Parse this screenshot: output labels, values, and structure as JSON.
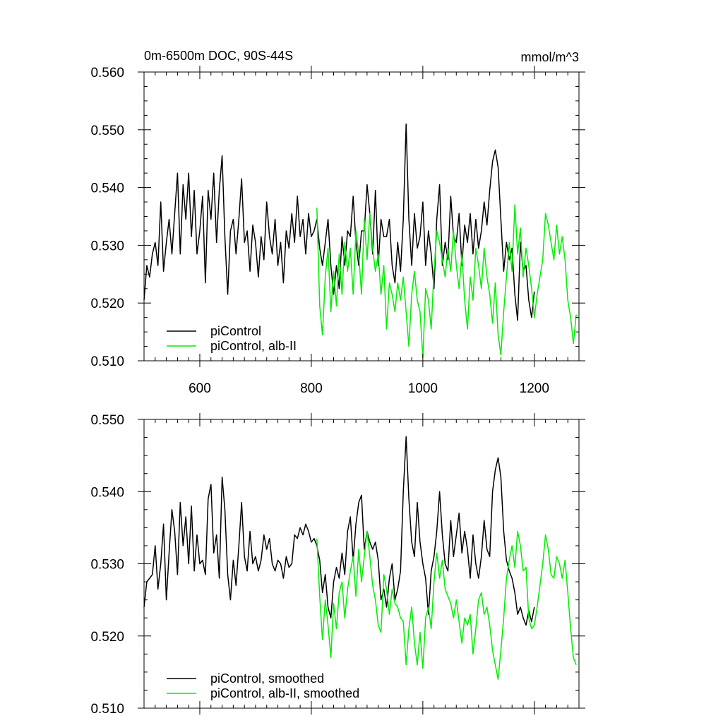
{
  "figure": {
    "title_left": "0m-6500m DOC, 90S-44S",
    "title_right": "mmol/m^3"
  },
  "colors": {
    "control": "#000000",
    "albII": "#00ee00",
    "axis": "#000000"
  },
  "chart_data": [
    {
      "type": "line",
      "xlim": [
        500,
        1280
      ],
      "ylim": [
        0.51,
        0.56
      ],
      "xticks": [
        600,
        800,
        1000,
        1200
      ],
      "xtick_labels": [
        "600",
        "800",
        "1000",
        "1200"
      ],
      "yticks": [
        0.51,
        0.52,
        0.53,
        0.54,
        0.55,
        0.56
      ],
      "ytick_labels": [
        "0.510",
        "0.520",
        "0.530",
        "0.540",
        "0.550",
        "0.560"
      ],
      "legend": [
        "piControl",
        "piControl, alb-II"
      ],
      "series": [
        {
          "name": "piControl",
          "x": [
            500,
            505,
            510,
            515,
            520,
            525,
            530,
            535,
            540,
            545,
            550,
            555,
            560,
            565,
            570,
            575,
            580,
            585,
            590,
            595,
            600,
            605,
            610,
            615,
            620,
            625,
            630,
            635,
            640,
            645,
            650,
            655,
            660,
            665,
            670,
            675,
            680,
            685,
            690,
            695,
            700,
            705,
            710,
            715,
            720,
            725,
            730,
            735,
            740,
            745,
            750,
            755,
            760,
            765,
            770,
            775,
            780,
            785,
            790,
            795,
            800,
            805,
            810,
            815,
            820,
            825,
            830,
            835,
            840,
            845,
            850,
            855,
            860,
            865,
            870,
            875,
            880,
            885,
            890,
            895,
            900,
            905,
            910,
            915,
            920,
            925,
            930,
            935,
            940,
            945,
            950,
            955,
            960,
            965,
            970,
            975,
            980,
            985,
            990,
            995,
            1000,
            1005,
            1010,
            1015,
            1020,
            1025,
            1030,
            1035,
            1040,
            1045,
            1050,
            1055,
            1060,
            1065,
            1070,
            1075,
            1080,
            1085,
            1090,
            1095,
            1100,
            1105,
            1110,
            1115,
            1120,
            1125,
            1130,
            1135,
            1140,
            1145,
            1150,
            1155,
            1160,
            1165,
            1170,
            1175,
            1180,
            1185,
            1190,
            1195,
            1200
          ],
          "y": [
            0.5205,
            0.5265,
            0.5245,
            0.5285,
            0.5305,
            0.5265,
            0.5375,
            0.5255,
            0.5305,
            0.5345,
            0.5285,
            0.5355,
            0.5425,
            0.5285,
            0.5405,
            0.5345,
            0.5425,
            0.5315,
            0.5395,
            0.5285,
            0.5325,
            0.5385,
            0.5235,
            0.5395,
            0.5345,
            0.5425,
            0.5305,
            0.5395,
            0.5455,
            0.5315,
            0.5215,
            0.5325,
            0.5345,
            0.5285,
            0.5345,
            0.5415,
            0.5305,
            0.5325,
            0.5255,
            0.5335,
            0.5305,
            0.5245,
            0.5315,
            0.5275,
            0.5375,
            0.5315,
            0.5285,
            0.5345,
            0.5265,
            0.5305,
            0.5235,
            0.5325,
            0.5295,
            0.5355,
            0.5305,
            0.5385,
            0.5315,
            0.5345,
            0.5285,
            0.5355,
            0.5315,
            0.5325,
            0.5345,
            0.5295,
            0.5265,
            0.5305,
            0.5345,
            0.5265,
            0.5215,
            0.5265,
            0.5225,
            0.5315,
            0.5265,
            0.5325,
            0.5315,
            0.5385,
            0.5305,
            0.5265,
            0.5325,
            0.5325,
            0.5405,
            0.5355,
            0.5285,
            0.5395,
            0.5265,
            0.5345,
            0.5315,
            0.5315,
            0.5345,
            0.5265,
            0.5235,
            0.5305,
            0.5255,
            0.5345,
            0.551,
            0.5345,
            0.5265,
            0.5355,
            0.5295,
            0.5315,
            0.5375,
            0.5265,
            0.5325,
            0.5285,
            0.5225,
            0.5345,
            0.5405,
            0.5265,
            0.5305,
            0.5275,
            0.5385,
            0.5315,
            0.5305,
            0.5355,
            0.5265,
            0.5335,
            0.5305,
            0.5355,
            0.5285,
            0.5345,
            0.5295,
            0.5325,
            0.5375,
            0.5335,
            0.5395,
            0.5445,
            0.5465,
            0.5435,
            0.5345,
            0.5255,
            0.5305,
            0.5275,
            0.5295,
            0.5215,
            0.517,
            0.5305,
            0.5255,
            0.5265,
            0.5205,
            0.5175,
            0.522
          ]
        },
        {
          "name": "piControl, alb-II",
          "x": [
            810,
            815,
            820,
            825,
            830,
            835,
            840,
            845,
            850,
            855,
            860,
            865,
            870,
            875,
            880,
            885,
            890,
            895,
            900,
            905,
            910,
            915,
            920,
            925,
            930,
            935,
            940,
            945,
            950,
            955,
            960,
            965,
            970,
            975,
            980,
            985,
            990,
            995,
            1000,
            1005,
            1010,
            1015,
            1020,
            1025,
            1030,
            1035,
            1040,
            1045,
            1050,
            1055,
            1060,
            1065,
            1070,
            1075,
            1080,
            1085,
            1090,
            1095,
            1100,
            1105,
            1110,
            1115,
            1120,
            1125,
            1130,
            1135,
            1140,
            1145,
            1150,
            1155,
            1160,
            1165,
            1170,
            1175,
            1180,
            1185,
            1190,
            1195,
            1200,
            1205,
            1210,
            1215,
            1220,
            1225,
            1230,
            1235,
            1240,
            1245,
            1250,
            1255,
            1260,
            1265,
            1270,
            1275
          ],
          "y": [
            0.5365,
            0.5195,
            0.5145,
            0.5245,
            0.5295,
            0.5185,
            0.5255,
            0.5195,
            0.5285,
            0.5215,
            0.5305,
            0.5255,
            0.5295,
            0.5215,
            0.5325,
            0.5285,
            0.5215,
            0.5345,
            0.5275,
            0.5355,
            0.5295,
            0.5255,
            0.5285,
            0.5215,
            0.5265,
            0.5155,
            0.5235,
            0.5215,
            0.5185,
            0.5235,
            0.5205,
            0.5245,
            0.5185,
            0.5125,
            0.5215,
            0.5255,
            0.5205,
            0.5185,
            0.5105,
            0.5225,
            0.5205,
            0.5155,
            0.5255,
            0.5325,
            0.5305,
            0.5275,
            0.5245,
            0.5295,
            0.5255,
            0.5325,
            0.5265,
            0.5225,
            0.5285,
            0.5205,
            0.5155,
            0.5245,
            0.5205,
            0.5295,
            0.5265,
            0.5225,
            0.5295,
            0.5245,
            0.5215,
            0.5165,
            0.5235,
            0.5145,
            0.511,
            0.5185,
            0.5245,
            0.5305,
            0.5255,
            0.537,
            0.5285,
            0.533,
            0.5245,
            0.5295,
            0.5265,
            0.5225,
            0.5175,
            0.5215,
            0.5245,
            0.5275,
            0.5355,
            0.5335,
            0.5305,
            0.5275,
            0.5335,
            0.5285,
            0.5315,
            0.5275,
            0.5205,
            0.5175,
            0.513,
            0.518
          ]
        }
      ]
    },
    {
      "type": "line",
      "xlim": [
        500,
        1280
      ],
      "ylim": [
        0.51,
        0.55
      ],
      "xticks": [
        600,
        800,
        1000,
        1200
      ],
      "xtick_labels": [],
      "yticks": [
        0.51,
        0.52,
        0.53,
        0.54,
        0.55
      ],
      "ytick_labels": [
        "0.510",
        "0.520",
        "0.530",
        "0.540",
        "0.550"
      ],
      "legend": [
        "piControl, smoothed",
        "piControl, alb-II, smoothed"
      ],
      "series": [
        {
          "name": "piControl, smoothed",
          "x": [
            500,
            505,
            510,
            515,
            520,
            525,
            530,
            535,
            540,
            545,
            550,
            555,
            560,
            565,
            570,
            575,
            580,
            585,
            590,
            595,
            600,
            605,
            610,
            615,
            620,
            625,
            630,
            635,
            640,
            645,
            650,
            655,
            660,
            665,
            670,
            675,
            680,
            685,
            690,
            695,
            700,
            705,
            710,
            715,
            720,
            725,
            730,
            735,
            740,
            745,
            750,
            755,
            760,
            765,
            770,
            775,
            780,
            785,
            790,
            795,
            800,
            805,
            810,
            815,
            820,
            825,
            830,
            835,
            840,
            845,
            850,
            855,
            860,
            865,
            870,
            875,
            880,
            885,
            890,
            895,
            900,
            905,
            910,
            915,
            920,
            925,
            930,
            935,
            940,
            945,
            950,
            955,
            960,
            965,
            970,
            975,
            980,
            985,
            990,
            995,
            1000,
            1005,
            1010,
            1015,
            1020,
            1025,
            1030,
            1035,
            1040,
            1045,
            1050,
            1055,
            1060,
            1065,
            1070,
            1075,
            1080,
            1085,
            1090,
            1095,
            1100,
            1105,
            1110,
            1115,
            1120,
            1125,
            1130,
            1135,
            1140,
            1145,
            1150,
            1155,
            1160,
            1165,
            1170,
            1175,
            1180,
            1185,
            1190,
            1195,
            1200
          ],
          "y": [
            0.524,
            0.5275,
            0.528,
            0.5285,
            0.5325,
            0.5265,
            0.53,
            0.5355,
            0.525,
            0.5315,
            0.5375,
            0.5345,
            0.5285,
            0.5385,
            0.5325,
            0.5365,
            0.53,
            0.538,
            0.529,
            0.534,
            0.53,
            0.5305,
            0.5285,
            0.539,
            0.541,
            0.5315,
            0.534,
            0.528,
            0.542,
            0.5375,
            0.5285,
            0.525,
            0.5305,
            0.527,
            0.5325,
            0.5385,
            0.531,
            0.529,
            0.5345,
            0.53,
            0.531,
            0.529,
            0.5305,
            0.534,
            0.532,
            0.5335,
            0.53,
            0.529,
            0.5305,
            0.53,
            0.528,
            0.531,
            0.5295,
            0.53,
            0.534,
            0.5335,
            0.535,
            0.534,
            0.5355,
            0.5345,
            0.533,
            0.5335,
            0.5325,
            0.5305,
            0.526,
            0.5285,
            0.524,
            0.5225,
            0.5275,
            0.5295,
            0.528,
            0.5315,
            0.5285,
            0.5345,
            0.5365,
            0.5305,
            0.5355,
            0.5385,
            0.5395,
            0.532,
            0.5345,
            0.533,
            0.532,
            0.533,
            0.5305,
            0.525,
            0.5265,
            0.524,
            0.528,
            0.53,
            0.525,
            0.5265,
            0.529,
            0.54,
            0.5476,
            0.539,
            0.533,
            0.531,
            0.5385,
            0.533,
            0.53,
            0.528,
            0.523,
            0.529,
            0.531,
            0.5345,
            0.54,
            0.534,
            0.53,
            0.529,
            0.536,
            0.531,
            0.534,
            0.537,
            0.5315,
            0.5345,
            0.532,
            0.528,
            0.534,
            0.53,
            0.528,
            0.531,
            0.536,
            0.532,
            0.531,
            0.54,
            0.543,
            0.5447,
            0.542,
            0.5345,
            0.5305,
            0.529,
            0.528,
            0.526,
            0.523,
            0.524,
            0.5225,
            0.5215,
            0.5235,
            0.522,
            0.524
          ]
        },
        {
          "name": "piControl, alb-II, smoothed",
          "x": [
            810,
            815,
            820,
            825,
            830,
            835,
            840,
            845,
            850,
            855,
            860,
            865,
            870,
            875,
            880,
            885,
            890,
            895,
            900,
            905,
            910,
            915,
            920,
            925,
            930,
            935,
            940,
            945,
            950,
            955,
            960,
            965,
            970,
            975,
            980,
            985,
            990,
            995,
            1000,
            1005,
            1010,
            1015,
            1020,
            1025,
            1030,
            1035,
            1040,
            1045,
            1050,
            1055,
            1060,
            1065,
            1070,
            1075,
            1080,
            1085,
            1090,
            1095,
            1100,
            1105,
            1110,
            1115,
            1120,
            1125,
            1130,
            1135,
            1140,
            1145,
            1150,
            1155,
            1160,
            1165,
            1170,
            1175,
            1180,
            1185,
            1190,
            1195,
            1200,
            1205,
            1210,
            1215,
            1220,
            1225,
            1230,
            1235,
            1240,
            1245,
            1250,
            1255,
            1260,
            1265,
            1270,
            1275
          ],
          "y": [
            0.5335,
            0.5255,
            0.5195,
            0.525,
            0.5215,
            0.517,
            0.5245,
            0.521,
            0.526,
            0.5275,
            0.5225,
            0.5265,
            0.529,
            0.531,
            0.5255,
            0.532,
            0.5275,
            0.531,
            0.5345,
            0.531,
            0.527,
            0.525,
            0.5215,
            0.5205,
            0.5285,
            0.5265,
            0.523,
            0.5265,
            0.5245,
            0.524,
            0.5225,
            0.522,
            0.516,
            0.521,
            0.524,
            0.519,
            0.516,
            0.5205,
            0.5155,
            0.5225,
            0.524,
            0.521,
            0.5275,
            0.5315,
            0.528,
            0.5305,
            0.5265,
            0.5255,
            0.5245,
            0.5225,
            0.525,
            0.522,
            0.519,
            0.5225,
            0.5215,
            0.523,
            0.5175,
            0.521,
            0.525,
            0.526,
            0.523,
            0.524,
            0.5215,
            0.518,
            0.516,
            0.514,
            0.518,
            0.5225,
            0.528,
            0.5305,
            0.5325,
            0.5295,
            0.5345,
            0.5325,
            0.529,
            0.5295,
            0.5225,
            0.521,
            0.5215,
            0.524,
            0.527,
            0.53,
            0.534,
            0.532,
            0.5285,
            0.528,
            0.531,
            0.53,
            0.528,
            0.5305,
            0.526,
            0.521,
            0.517,
            0.516
          ]
        }
      ]
    }
  ]
}
